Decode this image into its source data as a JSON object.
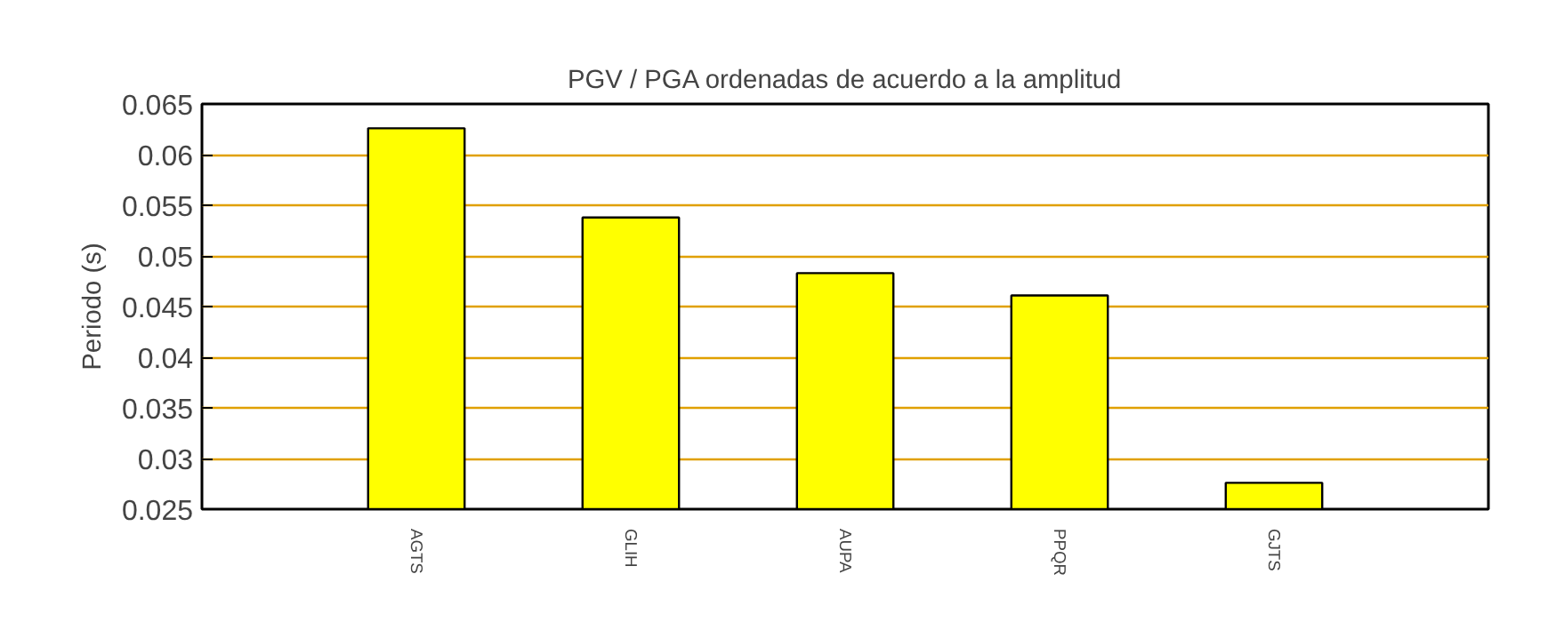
{
  "chart_data": {
    "type": "bar",
    "title": "PGV / PGA ordenadas de acuerdo a la amplitud",
    "ylabel": "Periodo (s)",
    "categories": [
      "AGTS",
      "GLIH",
      "AUPA",
      "PPQR",
      "GJTS"
    ],
    "values": [
      0.0626,
      0.0538,
      0.0483,
      0.0461,
      0.0276
    ],
    "color": "#ffff00",
    "ylim": [
      0.025,
      0.065
    ],
    "yticks": [
      0.025,
      0.03,
      0.035,
      0.04,
      0.045,
      0.05,
      0.055,
      0.06,
      0.065
    ],
    "grid": "y"
  }
}
